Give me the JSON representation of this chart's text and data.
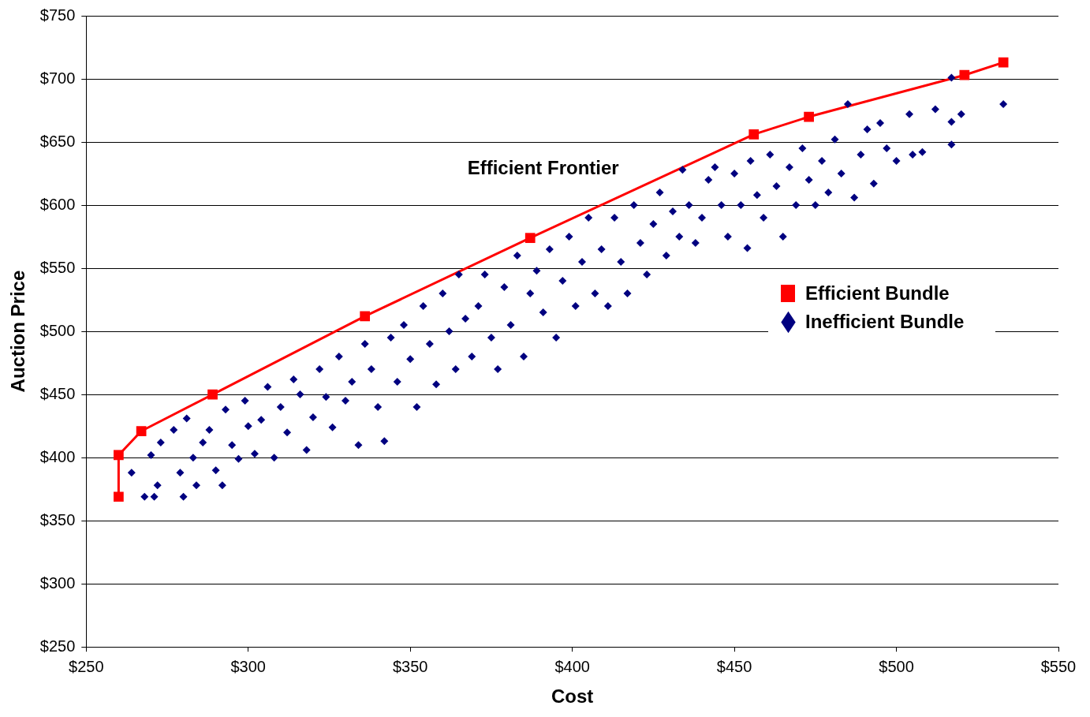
{
  "chart_data": {
    "type": "scatter",
    "xlabel": "Cost",
    "ylabel": "Auction Price",
    "xlim": [
      250,
      550
    ],
    "ylim": [
      250,
      750
    ],
    "xticks": [
      {
        "value": 250,
        "label": "$250"
      },
      {
        "value": 300,
        "label": "$300"
      },
      {
        "value": 350,
        "label": "$350"
      },
      {
        "value": 400,
        "label": "$400"
      },
      {
        "value": 450,
        "label": "$450"
      },
      {
        "value": 500,
        "label": "$500"
      },
      {
        "value": 550,
        "label": "$550"
      }
    ],
    "yticks": [
      {
        "value": 250,
        "label": "$250"
      },
      {
        "value": 300,
        "label": "$300"
      },
      {
        "value": 350,
        "label": "$350"
      },
      {
        "value": 400,
        "label": "$400"
      },
      {
        "value": 450,
        "label": "$450"
      },
      {
        "value": 500,
        "label": "$500"
      },
      {
        "value": 550,
        "label": "$550"
      },
      {
        "value": 600,
        "label": "$600"
      },
      {
        "value": 650,
        "label": "$650"
      },
      {
        "value": 700,
        "label": "$700"
      },
      {
        "value": 750,
        "label": "$750"
      }
    ],
    "grid": "y",
    "legend": "right",
    "annotations": [
      "Efficient Frontier"
    ],
    "series": [
      {
        "name": "Efficient Bundle",
        "type": "line",
        "marker": "square",
        "line_style": "solid",
        "color": "#ff0000",
        "x": [
          260,
          260,
          267,
          289,
          336,
          387,
          456,
          473,
          521,
          533
        ],
        "values": [
          369,
          402,
          421,
          450,
          512,
          574,
          656,
          670,
          703,
          713
        ]
      },
      {
        "name": "Inefficient Bundle",
        "type": "scatter",
        "marker": "diamond",
        "color": "#000080",
        "x": [
          264,
          268,
          271,
          270,
          272,
          273,
          277,
          279,
          280,
          281,
          283,
          284,
          286,
          288,
          290,
          292,
          293,
          295,
          297,
          299,
          300,
          302,
          304,
          306,
          308,
          310,
          312,
          314,
          316,
          318,
          320,
          322,
          324,
          326,
          328,
          330,
          332,
          334,
          336,
          338,
          340,
          342,
          344,
          346,
          348,
          350,
          352,
          354,
          356,
          358,
          360,
          362,
          364,
          365,
          367,
          369,
          371,
          373,
          375,
          377,
          379,
          381,
          383,
          385,
          387,
          389,
          391,
          393,
          395,
          397,
          399,
          401,
          403,
          405,
          407,
          409,
          411,
          413,
          415,
          417,
          419,
          421,
          423,
          425,
          427,
          429,
          431,
          433,
          434,
          436,
          438,
          440,
          442,
          444,
          446,
          448,
          450,
          452,
          454,
          455,
          457,
          459,
          461,
          463,
          465,
          467,
          469,
          471,
          473,
          475,
          477,
          479,
          481,
          483,
          485,
          487,
          489,
          491,
          493,
          495,
          497,
          500,
          504,
          505,
          508,
          512,
          517,
          517,
          517,
          520,
          533
        ],
        "values": [
          388,
          369,
          369,
          402,
          378,
          412,
          422,
          388,
          369,
          431,
          400,
          378,
          412,
          422,
          390,
          378,
          438,
          410,
          399,
          445,
          425,
          403,
          430,
          456,
          400,
          440,
          420,
          462,
          450,
          406,
          432,
          470,
          448,
          424,
          480,
          445,
          460,
          410,
          490,
          470,
          440,
          413,
          495,
          460,
          505,
          478,
          440,
          520,
          490,
          458,
          530,
          500,
          470,
          545,
          510,
          480,
          520,
          545,
          495,
          470,
          535,
          505,
          560,
          480,
          530,
          548,
          515,
          565,
          495,
          540,
          575,
          520,
          555,
          590,
          530,
          565,
          520,
          590,
          555,
          530,
          600,
          570,
          545,
          585,
          610,
          560,
          595,
          575,
          628,
          600,
          570,
          590,
          620,
          630,
          600,
          575,
          625,
          600,
          566,
          635,
          608,
          590,
          640,
          615,
          575,
          630,
          600,
          645,
          620,
          600,
          635,
          610,
          652,
          625,
          680,
          606,
          640,
          660,
          617,
          665,
          645,
          635,
          672,
          640,
          642,
          676,
          701,
          666,
          648,
          672,
          680
        ]
      }
    ]
  }
}
